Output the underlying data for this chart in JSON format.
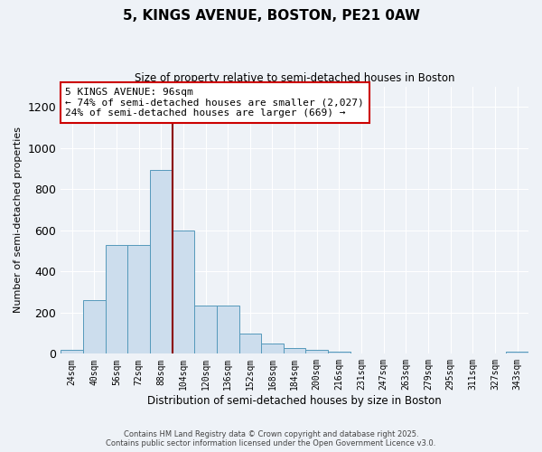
{
  "title": "5, KINGS AVENUE, BOSTON, PE21 0AW",
  "subtitle": "Size of property relative to semi-detached houses in Boston",
  "xlabel": "Distribution of semi-detached houses by size in Boston",
  "ylabel": "Number of semi-detached properties",
  "bar_color": "#ccdded",
  "bar_edge_color": "#5599bb",
  "categories": [
    "24sqm",
    "40sqm",
    "56sqm",
    "72sqm",
    "88sqm",
    "104sqm",
    "120sqm",
    "136sqm",
    "152sqm",
    "168sqm",
    "184sqm",
    "200sqm",
    "216sqm",
    "231sqm",
    "247sqm",
    "263sqm",
    "279sqm",
    "295sqm",
    "311sqm",
    "327sqm",
    "343sqm"
  ],
  "values": [
    20,
    260,
    530,
    530,
    895,
    600,
    235,
    235,
    100,
    50,
    30,
    20,
    10,
    0,
    0,
    0,
    0,
    0,
    0,
    0,
    10
  ],
  "ylim": [
    0,
    1300
  ],
  "yticks": [
    0,
    200,
    400,
    600,
    800,
    1000,
    1200
  ],
  "annotation_text": "5 KINGS AVENUE: 96sqm\n← 74% of semi-detached houses are smaller (2,027)\n24% of semi-detached houses are larger (669) →",
  "annotation_box_color": "#ffffff",
  "annotation_box_edge_color": "#cc0000",
  "vline_color": "#8b0000",
  "vline_x": 4.5,
  "footer_line1": "Contains HM Land Registry data © Crown copyright and database right 2025.",
  "footer_line2": "Contains public sector information licensed under the Open Government Licence v3.0.",
  "background_color": "#eef2f7",
  "plot_background_color": "#eef2f7",
  "grid_color": "#ffffff"
}
